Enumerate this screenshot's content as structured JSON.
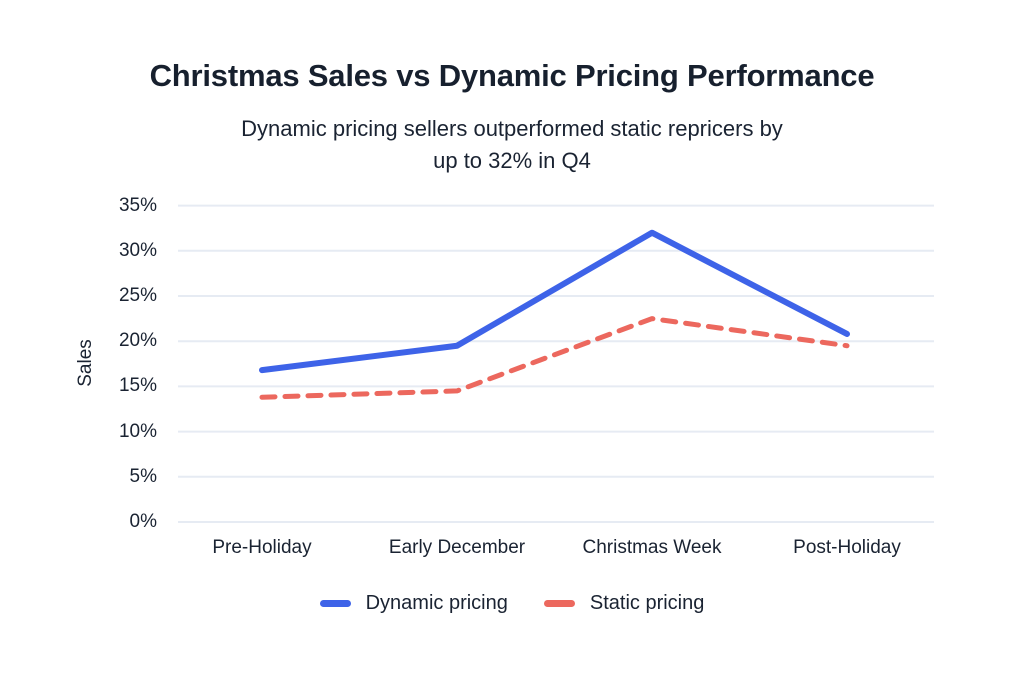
{
  "chart_data": {
    "type": "line",
    "title": "Christmas Sales vs Dynamic Pricing Performance",
    "subtitle_lines": [
      "Dynamic pricing sellers outperformed static repricers by",
      "up to 32% in Q4"
    ],
    "categories": [
      "Pre-Holiday",
      "Early December",
      "Christmas Week",
      "Post-Holiday"
    ],
    "series": [
      {
        "name": "Dynamic pricing",
        "color": "#3e63e8",
        "style": "solid",
        "values": [
          16.8,
          19.5,
          32,
          20.8
        ]
      },
      {
        "name": "Static pricing",
        "color": "#ec685e",
        "style": "dashed",
        "values": [
          13.8,
          14.5,
          22.5,
          19.5
        ]
      }
    ],
    "xlabel": "",
    "ylabel": "Sales",
    "ylim": [
      0,
      35
    ],
    "ytick_step": 5,
    "ytick_suffix": "%",
    "grid": true,
    "legend_position": "bottom"
  },
  "colors": {
    "background": "#ffffff",
    "text": "#1a2332",
    "gridline": "#e6ebf3",
    "dynamic_line": "#3e63e8",
    "static_line": "#ec685e"
  }
}
